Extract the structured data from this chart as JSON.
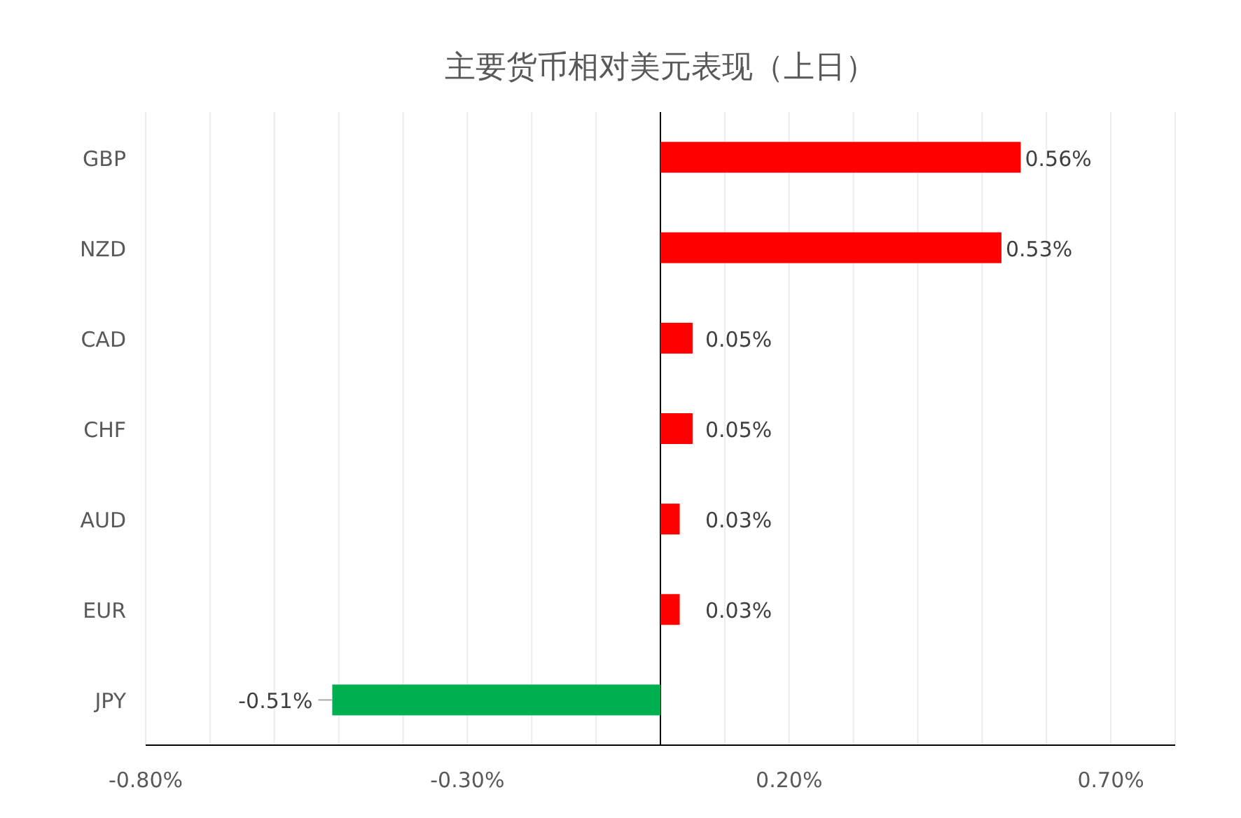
{
  "chart_data": {
    "type": "bar",
    "orientation": "horizontal",
    "title": "主要货币相对美元表现（上日）",
    "categories": [
      "GBP",
      "NZD",
      "CAD",
      "CHF",
      "AUD",
      "EUR",
      "JPY"
    ],
    "values": [
      0.56,
      0.53,
      0.05,
      0.05,
      0.03,
      0.03,
      -0.51
    ],
    "colors": [
      "#ff0000",
      "#ff0000",
      "#ff0000",
      "#ff0000",
      "#ff0000",
      "#ff0000",
      "#00b050"
    ],
    "value_labels": [
      "0.56%",
      "0.53%",
      "0.05%",
      "0.05%",
      "0.03%",
      "0.03%",
      "-0.51%"
    ],
    "xlim": [
      -0.8,
      0.8
    ],
    "xticks": [
      {
        "value": -0.8,
        "label": "-0.80%"
      },
      {
        "value": -0.7,
        "label": null
      },
      {
        "value": -0.6,
        "label": null
      },
      {
        "value": -0.5,
        "label": null
      },
      {
        "value": -0.4,
        "label": null
      },
      {
        "value": -0.3,
        "label": "-0.30%"
      },
      {
        "value": -0.2,
        "label": null
      },
      {
        "value": -0.1,
        "label": null
      },
      {
        "value": 0,
        "label": null
      },
      {
        "value": 0.1,
        "label": null
      },
      {
        "value": 0.2,
        "label": "0.20%"
      },
      {
        "value": 0.3,
        "label": null
      },
      {
        "value": 0.4,
        "label": null
      },
      {
        "value": 0.5,
        "label": null
      },
      {
        "value": 0.6,
        "label": null
      },
      {
        "value": 0.7,
        "label": "0.70%"
      },
      {
        "value": 0.8,
        "label": null
      }
    ],
    "grid": "x"
  }
}
